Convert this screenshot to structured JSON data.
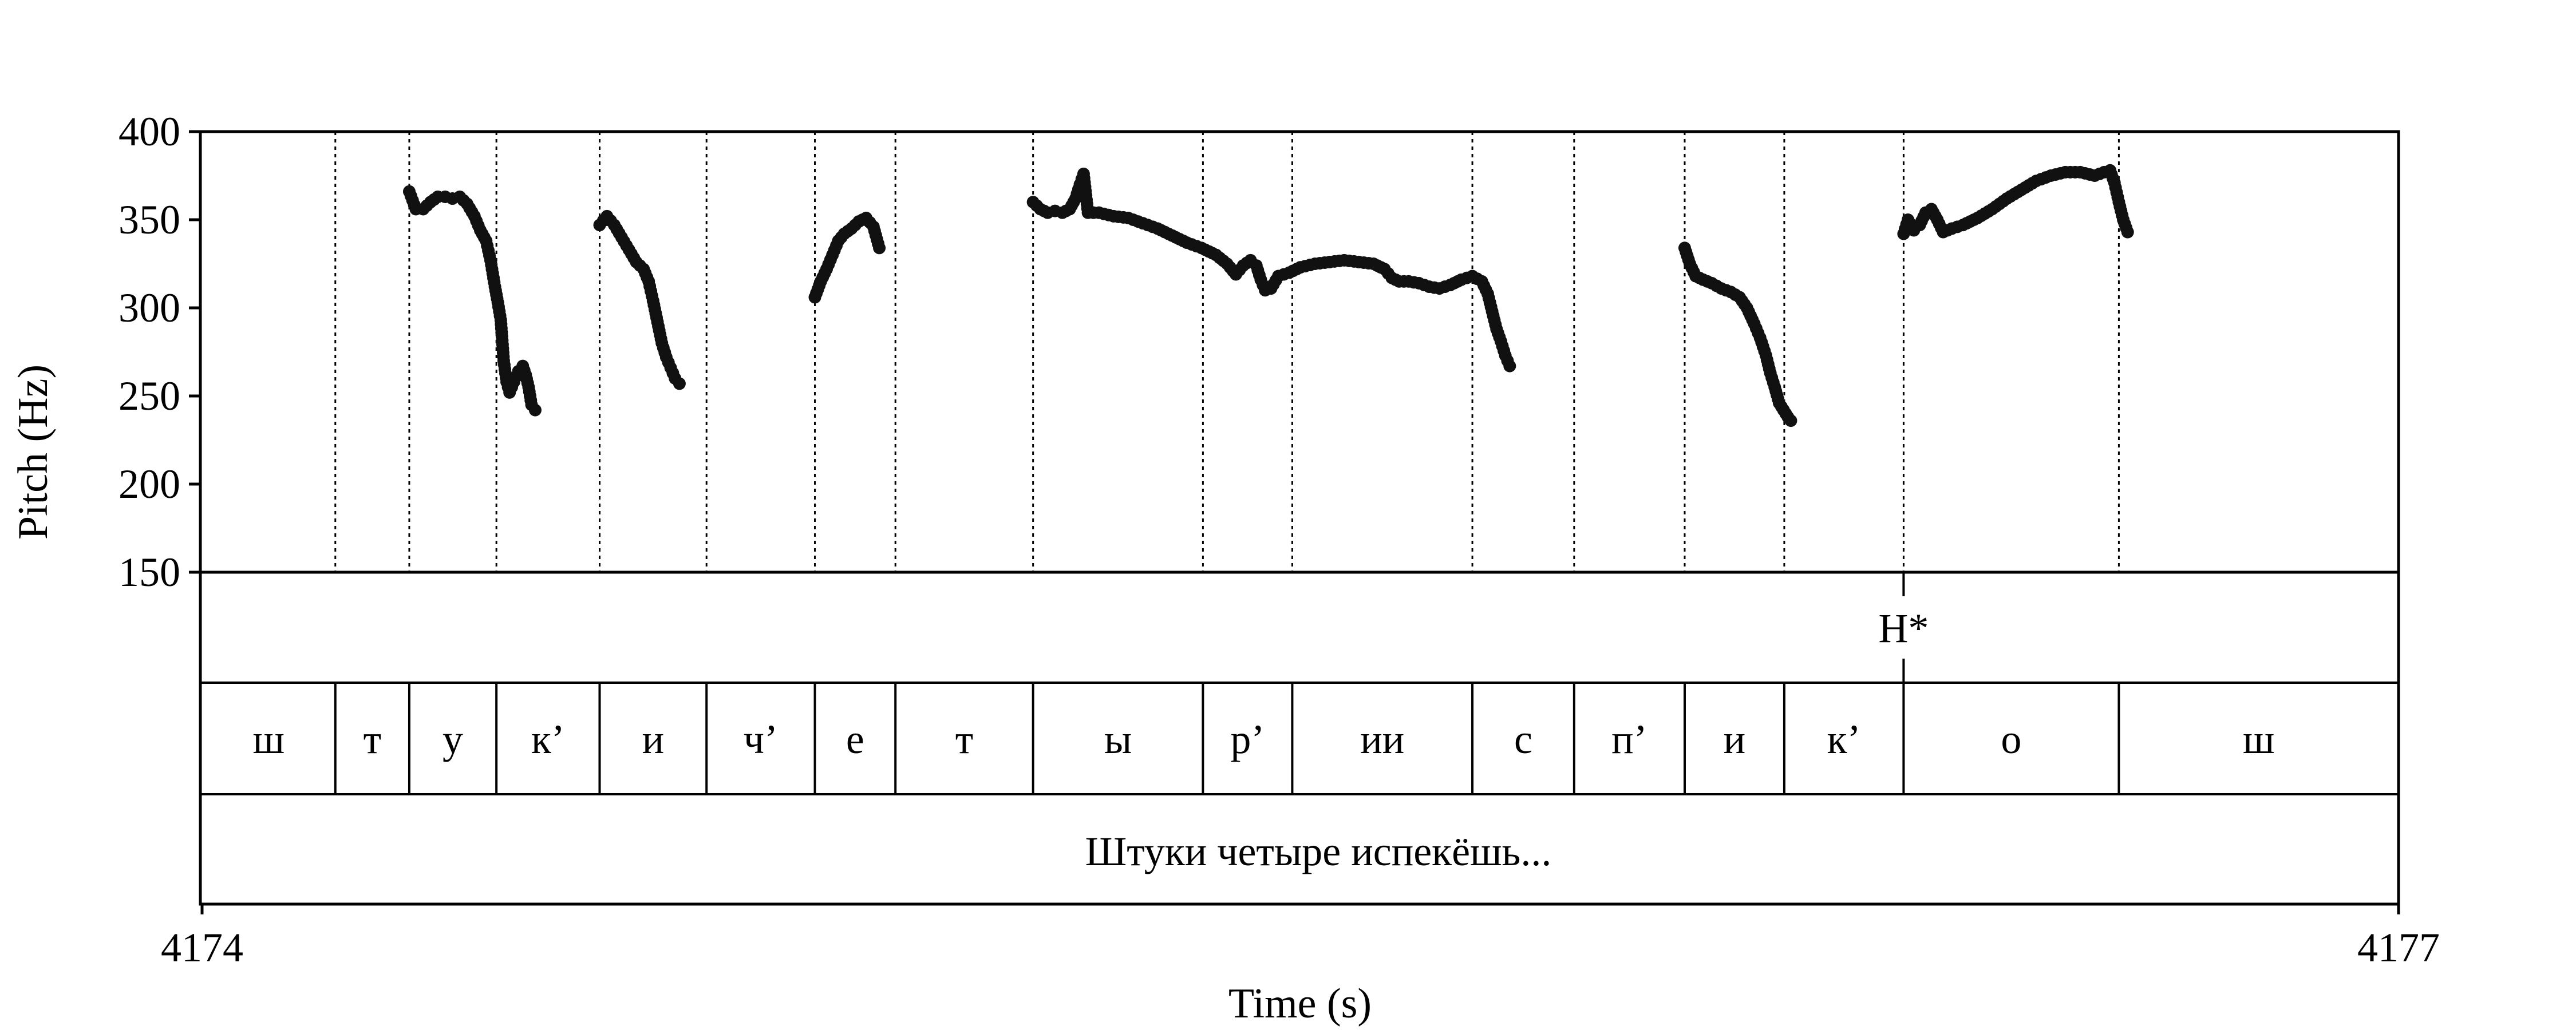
{
  "chart_data": {
    "type": "scatter",
    "xlabel": "Time (s)",
    "ylabel": "Pitch (Hz)",
    "xlim": [
      4174,
      4177
    ],
    "ylim": [
      150,
      400
    ],
    "x_tick_labels": [
      "4174",
      "4177"
    ],
    "y_ticks": [
      150,
      200,
      250,
      300,
      350,
      400
    ],
    "y_tick_labels": [
      "150",
      "200",
      "250",
      "300",
      "350",
      "400"
    ],
    "grid": false,
    "tone_tier": [
      {
        "time": 4176.324,
        "label": "H*"
      }
    ],
    "segment_boundaries": [
      4174.182,
      4174.283,
      4174.402,
      4174.543,
      4174.689,
      4174.837,
      4174.947,
      4175.135,
      4175.367,
      4175.489,
      4175.735,
      4175.874,
      4176.025,
      4176.161,
      4176.324,
      4176.618
    ],
    "segments": [
      "ш",
      "т",
      "у",
      "к’",
      "и",
      "ч’",
      "е",
      "т",
      "ы",
      "р’",
      "ии",
      "с",
      "п’",
      "и",
      "к’",
      "о",
      "ш"
    ],
    "sentence": "Штуки четыре испекёшь...",
    "series": [
      {
        "color": "#111111",
        "contours": [
          [
            [
              4174.283,
              366
            ],
            [
              4174.292,
              356
            ],
            [
              4174.302,
              356
            ],
            [
              4174.312,
              360
            ],
            [
              4174.322,
              363
            ],
            [
              4174.332,
              363
            ],
            [
              4174.342,
              362
            ],
            [
              4174.352,
              363
            ],
            [
              4174.362,
              359
            ],
            [
              4174.372,
              352
            ],
            [
              4174.38,
              344
            ],
            [
              4174.388,
              338
            ],
            [
              4174.394,
              327
            ],
            [
              4174.4,
              312
            ],
            [
              4174.404,
              303
            ],
            [
              4174.408,
              293
            ],
            [
              4174.412,
              270
            ],
            [
              4174.416,
              258
            ],
            [
              4174.42,
              252
            ],
            [
              4174.426,
              258
            ],
            [
              4174.432,
              264
            ],
            [
              4174.438,
              267
            ],
            [
              4174.442,
              262
            ],
            [
              4174.446,
              255
            ],
            [
              4174.45,
              245
            ],
            [
              4174.455,
              242
            ]
          ],
          [
            [
              4174.543,
              347
            ],
            [
              4174.553,
              352
            ],
            [
              4174.563,
              347
            ],
            [
              4174.573,
              340
            ],
            [
              4174.583,
              333
            ],
            [
              4174.593,
              326
            ],
            [
              4174.603,
              322
            ],
            [
              4174.61,
              315
            ],
            [
              4174.616,
              304
            ],
            [
              4174.622,
              292
            ],
            [
              4174.628,
              280
            ],
            [
              4174.634,
              272
            ],
            [
              4174.64,
              266
            ],
            [
              4174.646,
              260
            ],
            [
              4174.652,
              257
            ]
          ],
          [
            [
              4174.837,
              306
            ],
            [
              4174.845,
              315
            ],
            [
              4174.853,
              322
            ],
            [
              4174.861,
              330
            ],
            [
              4174.869,
              338
            ],
            [
              4174.877,
              342
            ],
            [
              4174.887,
              345
            ],
            [
              4174.897,
              349
            ],
            [
              4174.907,
              351
            ],
            [
              4174.917,
              346
            ],
            [
              4174.925,
              334
            ]
          ],
          [
            [
              4175.135,
              360
            ],
            [
              4175.145,
              356
            ],
            [
              4175.155,
              354
            ],
            [
              4175.165,
              355
            ],
            [
              4175.175,
              354
            ],
            [
              4175.185,
              356
            ],
            [
              4175.193,
              362
            ],
            [
              4175.199,
              370
            ],
            [
              4175.204,
              376
            ],
            [
              4175.21,
              354
            ],
            [
              4175.225,
              354
            ],
            [
              4175.245,
              352
            ],
            [
              4175.265,
              351
            ],
            [
              4175.285,
              348
            ],
            [
              4175.305,
              345
            ],
            [
              4175.325,
              341
            ],
            [
              4175.345,
              337
            ],
            [
              4175.365,
              334
            ],
            [
              4175.385,
              330
            ],
            [
              4175.4,
              325
            ],
            [
              4175.412,
              319
            ],
            [
              4175.422,
              324
            ],
            [
              4175.432,
              327
            ],
            [
              4175.44,
              324
            ],
            [
              4175.446,
              316
            ],
            [
              4175.452,
              310
            ],
            [
              4175.46,
              311
            ],
            [
              4175.47,
              318
            ],
            [
              4175.485,
              320
            ],
            [
              4175.5,
              323
            ],
            [
              4175.52,
              325
            ],
            [
              4175.54,
              326
            ],
            [
              4175.56,
              327
            ],
            [
              4175.58,
              326
            ],
            [
              4175.6,
              325
            ],
            [
              4175.615,
              322
            ],
            [
              4175.625,
              317
            ],
            [
              4175.635,
              315
            ],
            [
              4175.648,
              315
            ],
            [
              4175.662,
              314
            ],
            [
              4175.676,
              312
            ],
            [
              4175.69,
              311
            ],
            [
              4175.705,
              313
            ],
            [
              4175.72,
              316
            ],
            [
              4175.735,
              318
            ],
            [
              4175.748,
              315
            ],
            [
              4175.756,
              308
            ],
            [
              4175.762,
              298
            ],
            [
              4175.768,
              288
            ],
            [
              4175.774,
              281
            ],
            [
              4175.78,
              273
            ],
            [
              4175.786,
              267
            ]
          ],
          [
            [
              4176.025,
              334
            ],
            [
              4176.032,
              325
            ],
            [
              4176.04,
              318
            ],
            [
              4176.05,
              316
            ],
            [
              4176.062,
              314
            ],
            [
              4176.075,
              311
            ],
            [
              4176.088,
              309
            ],
            [
              4176.1,
              306
            ],
            [
              4176.11,
              300
            ],
            [
              4176.12,
              291
            ],
            [
              4176.128,
              283
            ],
            [
              4176.136,
              273
            ],
            [
              4176.142,
              263
            ],
            [
              4176.148,
              255
            ],
            [
              4176.154,
              246
            ],
            [
              4176.16,
              242
            ],
            [
              4176.166,
              238
            ],
            [
              4176.17,
              236
            ]
          ],
          [
            [
              4176.324,
              342
            ],
            [
              4176.33,
              350
            ],
            [
              4176.338,
              344
            ],
            [
              4176.346,
              347
            ],
            [
              4176.354,
              354
            ],
            [
              4176.362,
              356
            ],
            [
              4176.37,
              350
            ],
            [
              4176.378,
              343
            ],
            [
              4176.39,
              345
            ],
            [
              4176.405,
              347
            ],
            [
              4176.425,
              351
            ],
            [
              4176.445,
              356
            ],
            [
              4176.465,
              362
            ],
            [
              4176.485,
              367
            ],
            [
              4176.505,
              372
            ],
            [
              4176.525,
              375
            ],
            [
              4176.545,
              377
            ],
            [
              4176.565,
              377
            ],
            [
              4176.585,
              375
            ],
            [
              4176.598,
              377
            ],
            [
              4176.606,
              378
            ],
            [
              4176.612,
              371
            ],
            [
              4176.618,
              360
            ],
            [
              4176.624,
              350
            ],
            [
              4176.63,
              343
            ]
          ]
        ]
      }
    ]
  }
}
